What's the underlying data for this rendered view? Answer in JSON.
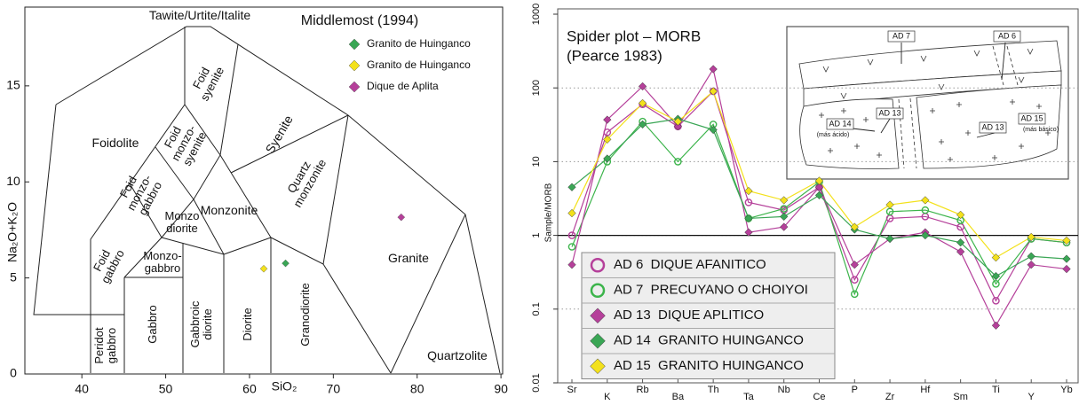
{
  "chart_data": [
    {
      "type": "scatter",
      "title": "Middlemost (1994)",
      "x_label": "SiO₂",
      "y_label": "Na₂O+K₂O",
      "xlim": [
        33.2,
        90.2
      ],
      "ylim": [
        0,
        19.1
      ],
      "xticks": [
        40,
        50,
        60,
        70,
        80,
        90
      ],
      "yticks": [
        0,
        5,
        10,
        15
      ],
      "fields": [
        {
          "lines": [
            "Tawite/Urtite/Italite"
          ]
        },
        {
          "lines": [
            "Foidolite"
          ]
        },
        {
          "lines": [
            "Foid",
            "gabbro"
          ]
        },
        {
          "lines": [
            "Foid",
            "monzo-",
            "gabbro"
          ]
        },
        {
          "lines": [
            "Foid",
            "monzo-",
            "syenite"
          ]
        },
        {
          "lines": [
            "Foid",
            "syenite"
          ]
        },
        {
          "lines": [
            "Syenite"
          ]
        },
        {
          "lines": [
            "Quartz",
            "monzonite"
          ]
        },
        {
          "lines": [
            "Monzonite"
          ]
        },
        {
          "lines": [
            "Monzo",
            "diorite"
          ]
        },
        {
          "lines": [
            "Monzo-",
            "gabbro"
          ]
        },
        {
          "lines": [
            "Gabbro"
          ]
        },
        {
          "lines": [
            "Gabbroic",
            "diorite"
          ]
        },
        {
          "lines": [
            "Diorite"
          ]
        },
        {
          "lines": [
            "Granodiorite"
          ]
        },
        {
          "lines": [
            "Granite"
          ]
        },
        {
          "lines": [
            "Quartzolite"
          ]
        },
        {
          "lines": [
            "Peridot",
            "gabbro"
          ]
        }
      ],
      "series": [
        {
          "name": "Granito de Huinganco",
          "color": "#3aa655",
          "x": [
            64.3
          ],
          "y": [
            5.76
          ]
        },
        {
          "name": "Granito de Huinganco",
          "color": "#f3e11c",
          "x": [
            61.7
          ],
          "y": [
            5.48
          ]
        },
        {
          "name": "Dique de Aplita",
          "color": "#b5409a",
          "x": [
            78.1
          ],
          "y": [
            8.16
          ]
        }
      ],
      "legend": "upper right"
    },
    {
      "type": "line",
      "title": "Spider plot – MORB",
      "subtitle": "(Pearce 1983)",
      "y_label": "Sample/MORB",
      "categories": [
        "Sr",
        "K",
        "Rb",
        "Ba",
        "Th",
        "Ta",
        "Nb",
        "Ce",
        "P",
        "Zr",
        "Hf",
        "Sm",
        "Ti",
        "Y",
        "Yb"
      ],
      "ylim": [
        0.01,
        1000
      ],
      "yticks": [
        0.01,
        0.1,
        1,
        10,
        100,
        1000
      ],
      "log_y": true,
      "grid": "dotted",
      "ref_line": 1,
      "legend": "lower left",
      "series": [
        {
          "name": "AD 6  DIQUE AFANITICO",
          "color": "#b5409a",
          "marker": "circle-open",
          "values": [
            1.0,
            25,
            60,
            30,
            90,
            2.8,
            2.2,
            4.5,
            0.25,
            1.7,
            1.8,
            1.3,
            0.13,
            0.9,
            0.8
          ]
        },
        {
          "name": "AD 7  PRECUYANO O CHOIYOI",
          "color": "#3cb44b",
          "marker": "circle-open",
          "values": [
            0.7,
            10,
            35,
            10,
            32,
            1.7,
            2.3,
            5.3,
            0.16,
            2.1,
            2.2,
            1.6,
            0.22,
            0.9,
            0.8
          ]
        },
        {
          "name": "AD 13  DIQUE APLITICO",
          "color": "#b5409a",
          "marker": "diamond",
          "values": [
            0.4,
            37,
            105,
            30,
            180,
            1.1,
            1.3,
            4.5,
            0.4,
            0.9,
            1.1,
            0.6,
            0.06,
            0.4,
            0.35
          ]
        },
        {
          "name": "AD 14  GRANITO HUINGANCO",
          "color": "#3aa655",
          "marker": "diamond",
          "values": [
            4.5,
            11,
            32,
            38,
            27,
            1.7,
            1.8,
            3.5,
            1.2,
            0.9,
            1.0,
            0.8,
            0.28,
            0.52,
            0.48
          ]
        },
        {
          "name": "AD 15  GRANITO HUINGANCO",
          "color": "#f3e11c",
          "marker": "diamond",
          "values": [
            2.0,
            20,
            62,
            35,
            90,
            4.0,
            3.0,
            5.5,
            1.3,
            2.6,
            3.0,
            1.9,
            0.5,
            0.95,
            0.85
          ]
        }
      ],
      "inset": {
        "labels": [
          "AD 7",
          "AD 6",
          "AD 14",
          "(más ácido)",
          "AD 13",
          "AD 13",
          "AD 15",
          "(más básico)"
        ]
      }
    }
  ]
}
